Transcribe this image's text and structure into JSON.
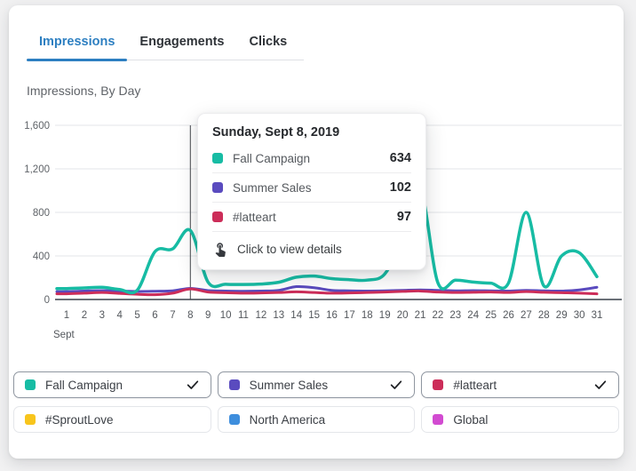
{
  "tabs": [
    {
      "label": "Impressions",
      "active": true
    },
    {
      "label": "Engagements",
      "active": false
    },
    {
      "label": "Clicks",
      "active": false
    }
  ],
  "chart_title": "Impressions, By Day",
  "tooltip": {
    "title": "Sunday, Sept 8, 2019",
    "rows": [
      {
        "label": "Fall Campaign",
        "value": "634",
        "color": "#17bca4"
      },
      {
        "label": "Summer Sales",
        "value": "102",
        "color": "#5a4bbf"
      },
      {
        "label": "#latteart",
        "value": "97",
        "color": "#cc2d59"
      }
    ],
    "footer": "Click to view details"
  },
  "chart_data": {
    "type": "line",
    "title": "Impressions, By Day",
    "month_label": "Sept",
    "x": [
      1,
      2,
      3,
      4,
      5,
      6,
      7,
      8,
      9,
      10,
      11,
      12,
      13,
      14,
      15,
      16,
      17,
      18,
      19,
      20,
      21,
      22,
      23,
      24,
      25,
      26,
      27,
      28,
      29,
      30,
      31
    ],
    "ylim": [
      0,
      1600
    ],
    "yticks": [
      {
        "value": 0,
        "label": "0"
      },
      {
        "value": 400,
        "label": "400"
      },
      {
        "value": 800,
        "label": "800"
      },
      {
        "value": 1200,
        "label": "1,200"
      },
      {
        "value": 1600,
        "label": "1,600"
      }
    ],
    "grid": true,
    "legend_position": "bottom",
    "hover_day": 8,
    "series": [
      {
        "name": "Summer Sales",
        "color": "#5a4bbf",
        "values": [
          72,
          78,
          82,
          78,
          74,
          76,
          80,
          102,
          82,
          78,
          76,
          78,
          84,
          118,
          108,
          84,
          80,
          78,
          80,
          84,
          88,
          84,
          80,
          82,
          80,
          78,
          84,
          80,
          78,
          88,
          112
        ]
      },
      {
        "name": "#latteart",
        "color": "#cc2d59",
        "values": [
          52,
          58,
          64,
          56,
          48,
          44,
          58,
          97,
          68,
          62,
          58,
          60,
          64,
          70,
          64,
          58,
          60,
          64,
          68,
          74,
          78,
          68,
          64,
          66,
          68,
          64,
          72,
          66,
          62,
          58,
          52
        ]
      },
      {
        "name": "Fall Campaign",
        "color": "#17bca4",
        "values": [
          100,
          106,
          112,
          92,
          86,
          440,
          465,
          634,
          160,
          140,
          138,
          142,
          158,
          205,
          215,
          192,
          182,
          178,
          235,
          560,
          1020,
          155,
          178,
          160,
          150,
          152,
          800,
          125,
          400,
          430,
          210
        ]
      }
    ]
  },
  "legend": {
    "items": [
      {
        "label": "Fall Campaign",
        "color": "#17bca4",
        "checked": true
      },
      {
        "label": "Summer Sales",
        "color": "#5a4bbf",
        "checked": true
      },
      {
        "label": "#latteart",
        "color": "#cc2d59",
        "checked": true
      },
      {
        "label": "#SproutLove",
        "color": "#f8c51c",
        "checked": false
      },
      {
        "label": "North America",
        "color": "#3e8edd",
        "checked": false
      },
      {
        "label": "Global",
        "color": "#d24bd1",
        "checked": false
      }
    ]
  },
  "colors": {
    "accent_tab": "#2d7fc1",
    "grid_line": "#e3e5e8",
    "axis_line": "#6b7077",
    "hover_line": "#44474c",
    "axis_text": "#5f6368"
  }
}
